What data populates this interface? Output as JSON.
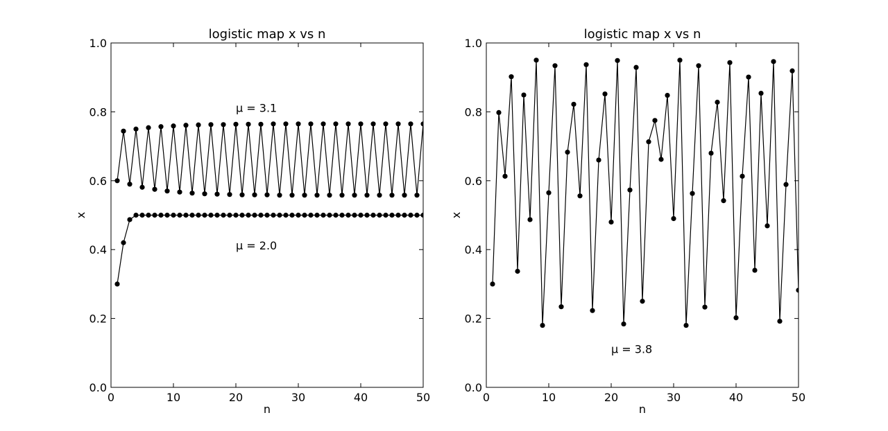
{
  "chart_data": [
    {
      "type": "line",
      "title": "logistic map  x vs n",
      "xlabel": "n",
      "ylabel": "x",
      "xlim": [
        0,
        50
      ],
      "ylim": [
        0,
        1
      ],
      "xticks": [
        "0",
        "10",
        "20",
        "30",
        "40",
        "50"
      ],
      "yticks": [
        "0.0",
        "0.2",
        "0.4",
        "0.6",
        "0.8",
        "1.0"
      ],
      "grid": false,
      "marker": "circle",
      "line_color": "#000000",
      "annotations": [
        {
          "text": "μ = 3.1",
          "x": 20,
          "y": 0.8
        },
        {
          "text": "μ = 2.0",
          "x": 20,
          "y": 0.4
        }
      ],
      "series": [
        {
          "x": [
            1,
            2,
            3,
            4,
            5,
            6,
            7,
            8,
            9,
            10,
            11,
            12,
            13,
            14,
            15,
            16,
            17,
            18,
            19,
            20,
            21,
            22,
            23,
            24,
            25,
            26,
            27,
            28,
            29,
            30,
            31,
            32,
            33,
            34,
            35,
            36,
            37,
            38,
            39,
            40,
            41,
            42,
            43,
            44,
            45,
            46,
            47,
            48,
            49,
            50
          ],
          "values": [
            0.6,
            0.744,
            0.59,
            0.75,
            0.581,
            0.754,
            0.575,
            0.757,
            0.57,
            0.759,
            0.567,
            0.761,
            0.564,
            0.762,
            0.562,
            0.763,
            0.561,
            0.763,
            0.56,
            0.764,
            0.559,
            0.764,
            0.559,
            0.764,
            0.559,
            0.765,
            0.558,
            0.765,
            0.558,
            0.765,
            0.558,
            0.765,
            0.558,
            0.765,
            0.558,
            0.765,
            0.558,
            0.765,
            0.558,
            0.765,
            0.558,
            0.765,
            0.558,
            0.765,
            0.558,
            0.765,
            0.558,
            0.765,
            0.558,
            0.765
          ]
        },
        {
          "x": [
            1,
            2,
            3,
            4,
            5,
            6,
            7,
            8,
            9,
            10,
            11,
            12,
            13,
            14,
            15,
            16,
            17,
            18,
            19,
            20,
            21,
            22,
            23,
            24,
            25,
            26,
            27,
            28,
            29,
            30,
            31,
            32,
            33,
            34,
            35,
            36,
            37,
            38,
            39,
            40,
            41,
            42,
            43,
            44,
            45,
            46,
            47,
            48,
            49,
            50
          ],
          "values": [
            0.3,
            0.42,
            0.487,
            0.5,
            0.5,
            0.5,
            0.5,
            0.5,
            0.5,
            0.5,
            0.5,
            0.5,
            0.5,
            0.5,
            0.5,
            0.5,
            0.5,
            0.5,
            0.5,
            0.5,
            0.5,
            0.5,
            0.5,
            0.5,
            0.5,
            0.5,
            0.5,
            0.5,
            0.5,
            0.5,
            0.5,
            0.5,
            0.5,
            0.5,
            0.5,
            0.5,
            0.5,
            0.5,
            0.5,
            0.5,
            0.5,
            0.5,
            0.5,
            0.5,
            0.5,
            0.5,
            0.5,
            0.5,
            0.5,
            0.5
          ]
        }
      ]
    },
    {
      "type": "line",
      "title": "logistic map  x vs n",
      "xlabel": "n",
      "ylabel": "x",
      "xlim": [
        0,
        50
      ],
      "ylim": [
        0,
        1
      ],
      "xticks": [
        "0",
        "10",
        "20",
        "30",
        "40",
        "50"
      ],
      "yticks": [
        "0.0",
        "0.2",
        "0.4",
        "0.6",
        "0.8",
        "1.0"
      ],
      "grid": false,
      "marker": "circle",
      "line_color": "#000000",
      "annotations": [
        {
          "text": "μ = 3.8",
          "x": 20,
          "y": 0.1
        }
      ],
      "series": [
        {
          "x": [
            1,
            2,
            3,
            4,
            5,
            6,
            7,
            8,
            9,
            10,
            11,
            12,
            13,
            14,
            15,
            16,
            17,
            18,
            19,
            20,
            21,
            22,
            23,
            24,
            25,
            26,
            27,
            28,
            29,
            30,
            31,
            32,
            33,
            34,
            35,
            36,
            37,
            38,
            39,
            40,
            41,
            42,
            43,
            44,
            45,
            46,
            47,
            48,
            49,
            50
          ],
          "values": [
            0.3,
            0.798,
            0.613,
            0.902,
            0.337,
            0.849,
            0.487,
            0.95,
            0.18,
            0.565,
            0.934,
            0.234,
            0.683,
            0.822,
            0.556,
            0.937,
            0.223,
            0.66,
            0.852,
            0.48,
            0.949,
            0.184,
            0.573,
            0.929,
            0.25,
            0.713,
            0.775,
            0.662,
            0.848,
            0.49,
            0.95,
            0.18,
            0.563,
            0.934,
            0.233,
            0.68,
            0.828,
            0.542,
            0.943,
            0.202,
            0.613,
            0.901,
            0.34,
            0.854,
            0.469,
            0.946,
            0.192,
            0.589,
            0.919,
            0.282
          ]
        }
      ]
    }
  ]
}
